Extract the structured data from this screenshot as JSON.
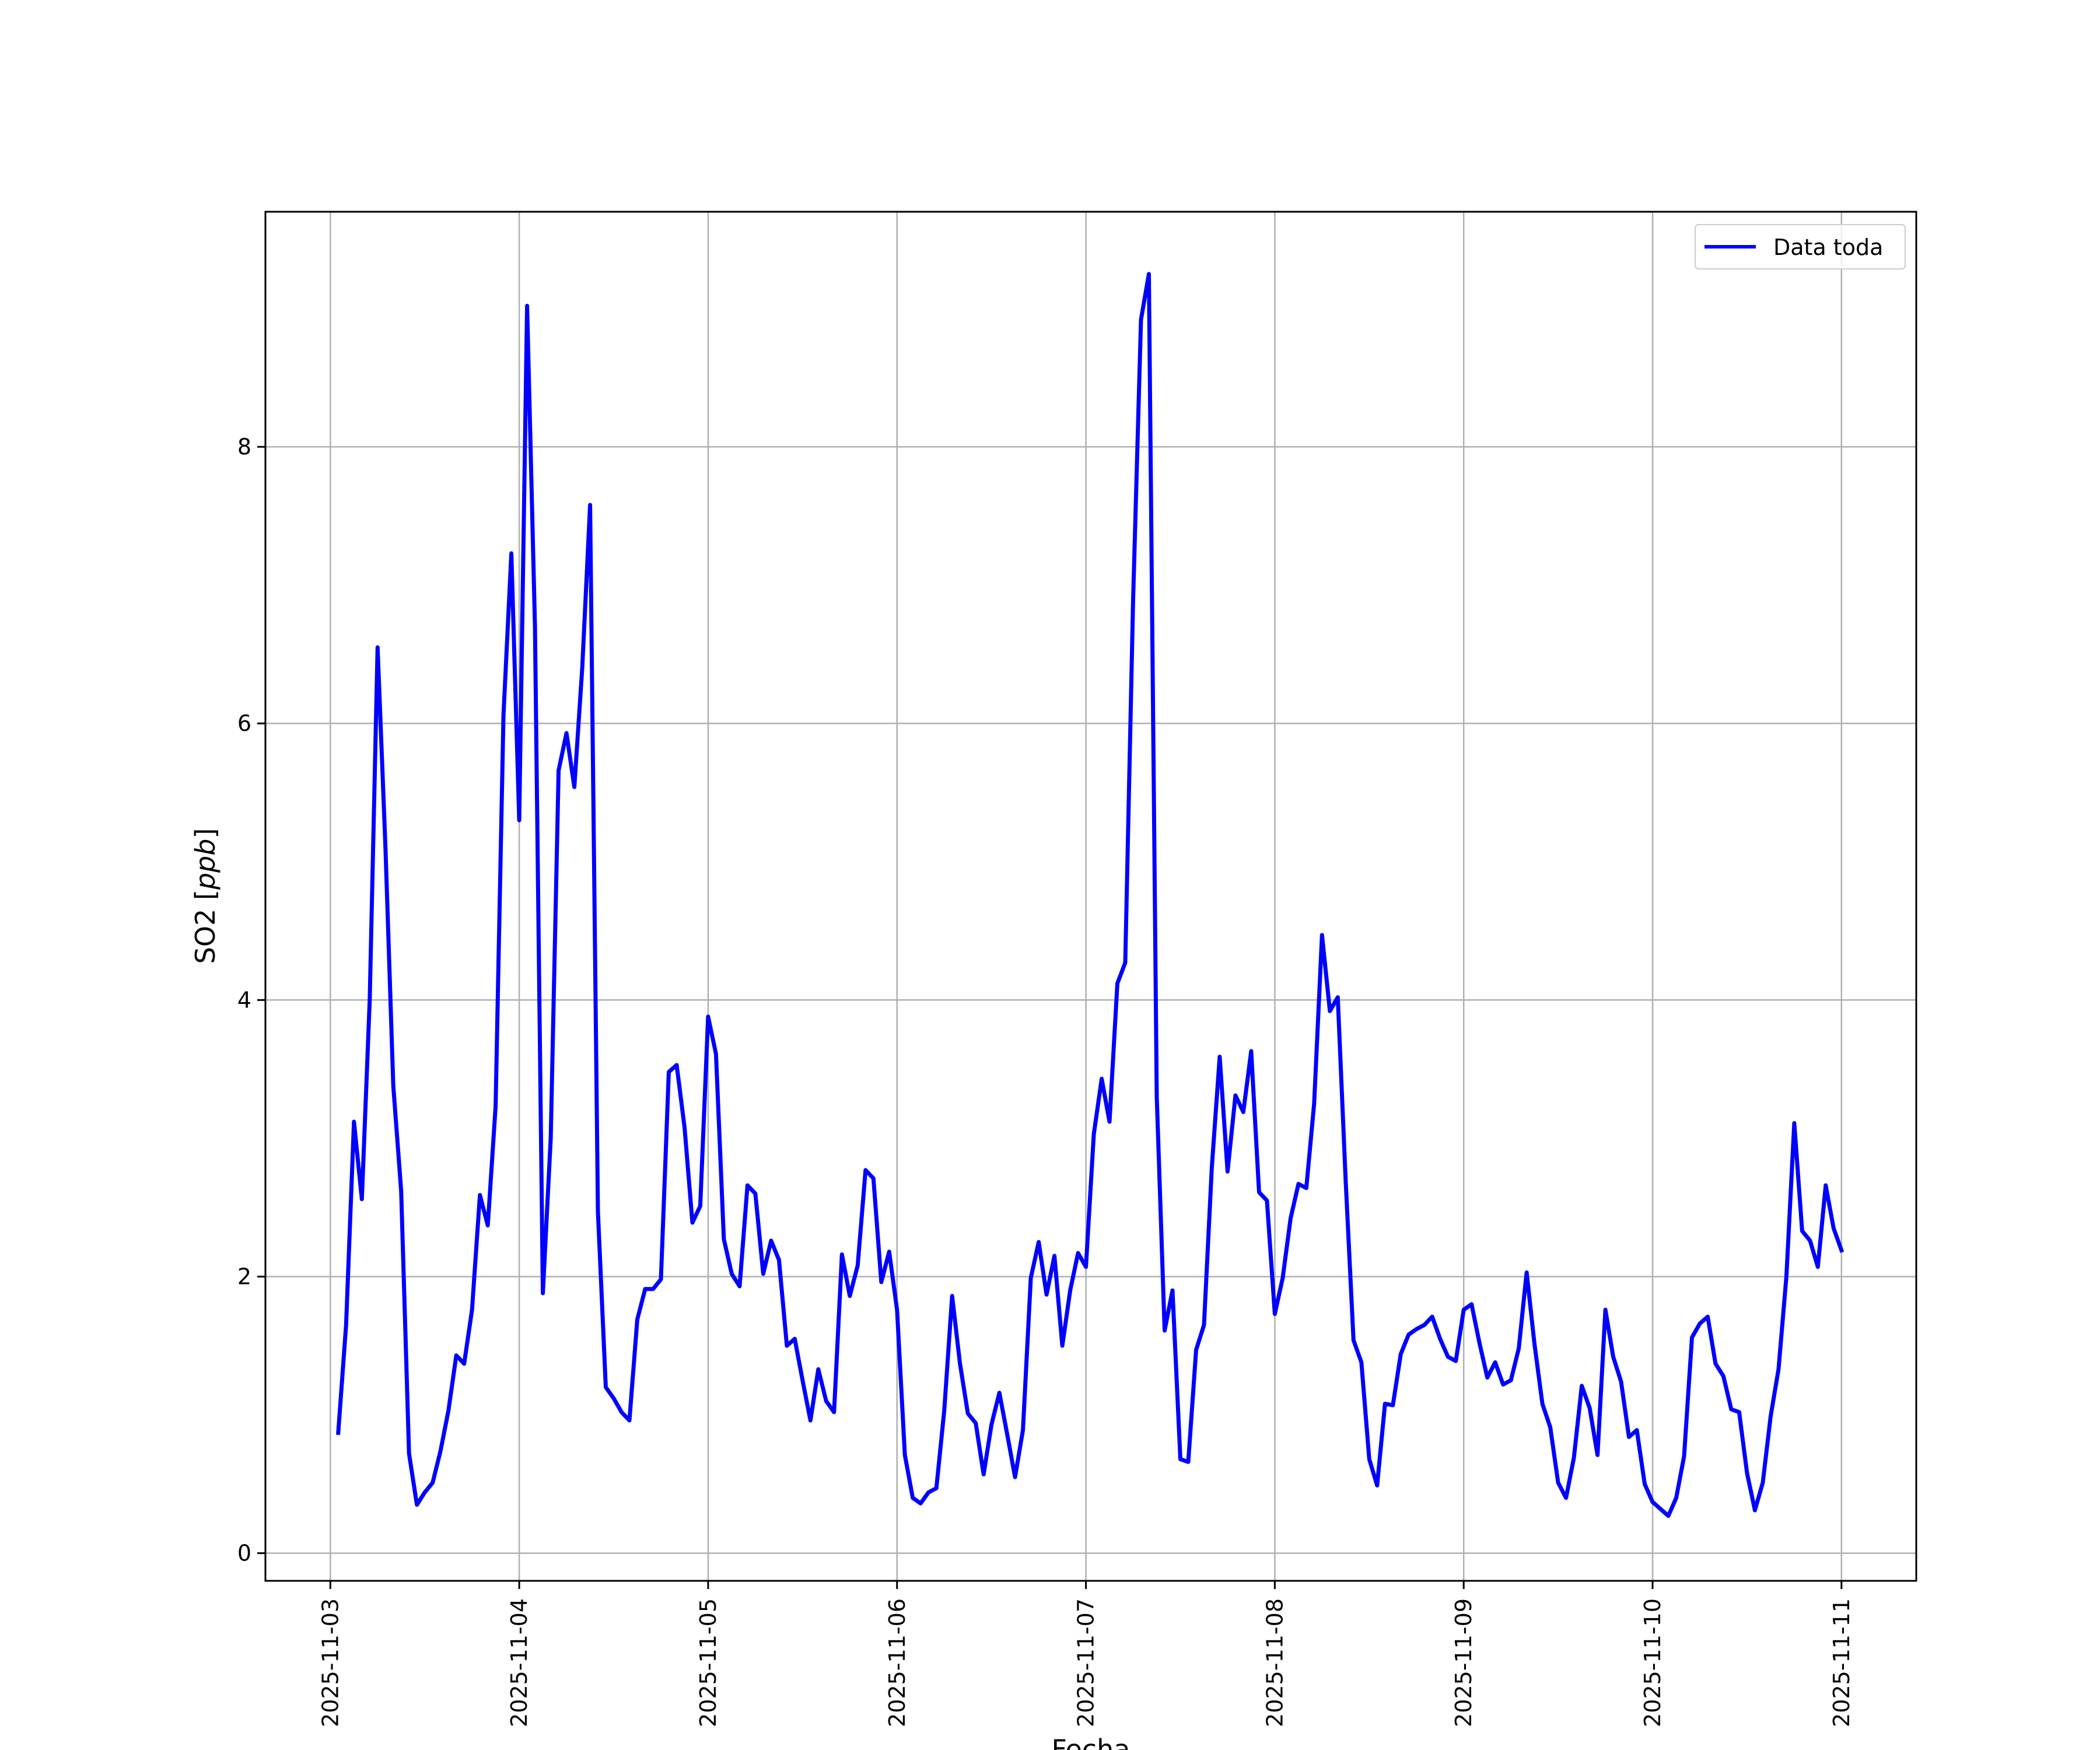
{
  "chart_data": {
    "type": "line",
    "title": "",
    "xlabel": "Fecha",
    "ylabel": "SO2 [ppb]",
    "ylabel_main": "SO2 ",
    "ylabel_unit": "ppb",
    "grid": true,
    "legend_position": "top-right",
    "xlim": [
      "2025-11-02T15:45",
      "2025-11-11T09:30"
    ],
    "ylim": [
      -0.2,
      9.7
    ],
    "x_ticks": [
      "2025-11-03",
      "2025-11-04",
      "2025-11-05",
      "2025-11-06",
      "2025-11-07",
      "2025-11-08",
      "2025-11-09",
      "2025-11-10",
      "2025-11-11"
    ],
    "y_ticks": [
      0,
      2,
      4,
      6,
      8
    ],
    "y_tick_labels": [
      "0",
      "2",
      "4",
      "6",
      "8"
    ],
    "series": [
      {
        "name": "Data toda",
        "color": "#0000ff",
        "x_start": "2025-11-03T01:00",
        "interval_hours": 1,
        "values": [
          0.87,
          1.65,
          3.12,
          2.56,
          4.0,
          6.55,
          5.1,
          3.38,
          2.62,
          0.72,
          0.35,
          0.44,
          0.51,
          0.74,
          1.03,
          1.43,
          1.37,
          1.76,
          2.59,
          2.37,
          3.23,
          6.06,
          7.23,
          5.3,
          9.02,
          6.7,
          1.88,
          3.0,
          5.66,
          5.93,
          5.54,
          6.4,
          7.58,
          2.47,
          1.2,
          1.12,
          1.02,
          0.96,
          1.69,
          1.91,
          1.91,
          1.98,
          3.48,
          3.53,
          3.08,
          2.39,
          2.51,
          3.88,
          3.61,
          2.27,
          2.02,
          1.93,
          2.66,
          2.6,
          2.02,
          2.26,
          2.12,
          1.5,
          1.55,
          1.25,
          0.96,
          1.33,
          1.1,
          1.02,
          2.16,
          1.86,
          2.08,
          2.77,
          2.71,
          1.96,
          2.18,
          1.76,
          0.71,
          0.4,
          0.36,
          0.44,
          0.47,
          1.03,
          1.86,
          1.37,
          1.01,
          0.94,
          0.57,
          0.93,
          1.16,
          0.86,
          0.55,
          0.89,
          1.99,
          2.25,
          1.87,
          2.15,
          1.5,
          1.9,
          2.17,
          2.07,
          3.03,
          3.43,
          3.12,
          4.12,
          4.27,
          6.9,
          8.92,
          9.25,
          3.3,
          1.61,
          1.9,
          0.68,
          0.66,
          1.47,
          1.65,
          2.79,
          3.59,
          2.76,
          3.31,
          3.19,
          3.63,
          2.61,
          2.55,
          1.73,
          1.99,
          2.42,
          2.67,
          2.64,
          3.25,
          4.47,
          3.92,
          4.02,
          2.7,
          1.54,
          1.38,
          0.68,
          0.49,
          1.08,
          1.07,
          1.44,
          1.58,
          1.62,
          1.65,
          1.71,
          1.55,
          1.42,
          1.39,
          1.76,
          1.8,
          1.52,
          1.27,
          1.38,
          1.22,
          1.25,
          1.48,
          2.03,
          1.51,
          1.08,
          0.91,
          0.51,
          0.4,
          0.69,
          1.21,
          1.05,
          0.71,
          1.76,
          1.42,
          1.24,
          0.84,
          0.89,
          0.5,
          0.37,
          0.32,
          0.27,
          0.4,
          0.7,
          1.56,
          1.66,
          1.71,
          1.37,
          1.28,
          1.04,
          1.02,
          0.58,
          0.31,
          0.51,
          0.99,
          1.33,
          2.0,
          3.11,
          2.33,
          2.26,
          2.07,
          2.66,
          2.35,
          2.19
        ]
      }
    ]
  }
}
